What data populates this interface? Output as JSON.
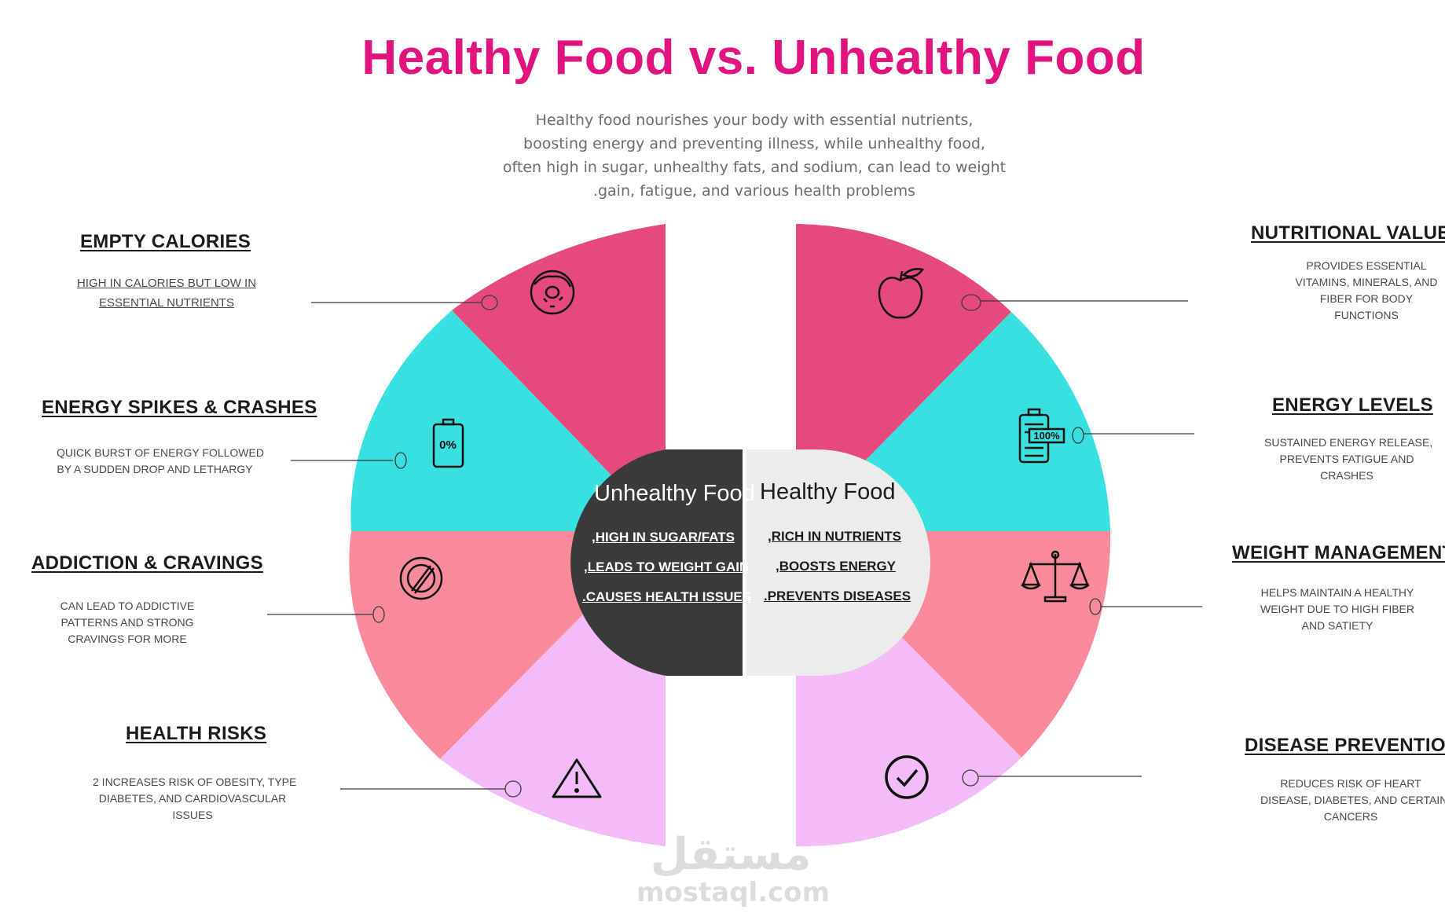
{
  "title": "Healthy Food vs. Unhealthy Food",
  "intro": [
    "Healthy food nourishes your body with essential nutrients,",
    "boosting energy and preventing illness, while unhealthy food,",
    "often high in sugar, unhealthy fats, and sodium, can lead to weight",
    ".gain, fatigue, and various health problems"
  ],
  "colors": {
    "title": "#e0137f",
    "segment_magenta": "#e6497d",
    "segment_cyan": "#38e0e0",
    "segment_pink": "#f98a9c",
    "segment_lavender": "#f3bcf8",
    "unhealthy_core": "#3a3a3a",
    "healthy_core": "#ececec"
  },
  "left": [
    {
      "heading": "EMPTY CALORIES",
      "desc": [
        "HIGH IN CALORIES BUT LOW IN",
        "ESSENTIAL NUTRIENTS"
      ],
      "icon": "donut-icon"
    },
    {
      "heading": "ENERGY SPIKES & CRASHES",
      "desc": [
        "QUICK BURST OF ENERGY FOLLOWED",
        "BY A SUDDEN DROP AND LETHARGY"
      ],
      "icon": "battery-empty-icon",
      "icon_text": "0%"
    },
    {
      "heading": "ADDICTION & CRAVINGS",
      "desc": [
        "CAN LEAD TO ADDICTIVE",
        "PATTERNS AND STRONG",
        "CRAVINGS FOR MORE"
      ],
      "icon": "prohibited-icon"
    },
    {
      "heading": "HEALTH RISKS",
      "desc": [
        "2 INCREASES RISK OF OBESITY, TYPE",
        "DIABETES, AND CARDIOVASCULAR",
        "ISSUES"
      ],
      "icon": "warning-icon"
    }
  ],
  "right": [
    {
      "heading": "NUTRITIONAL VALUE",
      "desc": [
        "PROVIDES ESSENTIAL",
        "VITAMINS, MINERALS, AND",
        "FIBER FOR BODY",
        "FUNCTIONS"
      ],
      "icon": "apple-icon"
    },
    {
      "heading": "ENERGY LEVELS",
      "desc": [
        "SUSTAINED ENERGY RELEASE,",
        "PREVENTS FATIGUE AND",
        "CRASHES"
      ],
      "icon": "battery-full-icon",
      "icon_text": "100%"
    },
    {
      "heading": "WEIGHT MANAGEMENT",
      "desc": [
        "HELPS MAINTAIN A HEALTHY",
        "WEIGHT DUE TO HIGH FIBER",
        "AND SATIETY"
      ],
      "icon": "scale-icon"
    },
    {
      "heading": "DISEASE PREVENTION",
      "desc": [
        "REDUCES RISK OF HEART",
        "DISEASE, DIABETES, AND CERTAIN",
        "CANCERS"
      ],
      "icon": "check-circle-icon"
    }
  ],
  "center": {
    "unhealthy": {
      "title": "Unhealthy Food",
      "items": [
        ",HIGH IN SUGAR/FATS",
        ",LEADS TO WEIGHT GAIN",
        ".CAUSES HEALTH ISSUES"
      ]
    },
    "healthy": {
      "title": "Healthy Food",
      "items": [
        ",RICH IN NUTRIENTS",
        ",BOOSTS ENERGY",
        ".PREVENTS DISEASES"
      ]
    }
  },
  "watermark": {
    "arabic": "مستقل",
    "latin": "mostaql.com"
  }
}
